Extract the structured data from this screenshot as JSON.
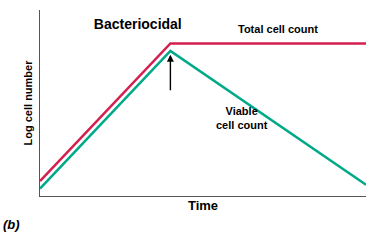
{
  "chart_data": {
    "type": "line",
    "title": "Bacteriocidal",
    "x_label": "Time",
    "y_label": "Log cell number",
    "x": [
      0.0,
      0.4,
      1.0
    ],
    "series": [
      {
        "name": "Total cell count",
        "color": "#d42050",
        "values": [
          0.08,
          0.82,
          0.82
        ]
      },
      {
        "name": "Viable\ncell count",
        "color": "#00aa88",
        "values": [
          0.04,
          0.78,
          0.06
        ]
      }
    ],
    "arrow": {
      "x": 0.4,
      "y_start": 0.56,
      "y_end": 0.76
    },
    "annotations": [
      "(b)"
    ],
    "xlim": [
      0,
      1.0
    ],
    "ylim": [
      0,
      1.0
    ],
    "xticks": [],
    "yticks": [],
    "tick_labels": false,
    "grid": false
  }
}
